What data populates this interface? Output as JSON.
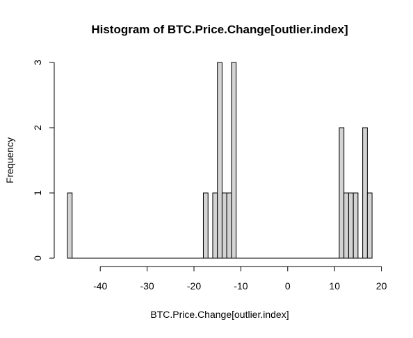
{
  "chart_data": {
    "type": "bar",
    "subtype": "histogram",
    "title": "Histogram of BTC.Price.Change[outlier.index]",
    "xlabel": "BTC.Price.Change[outlier.index]",
    "ylabel": "Frequency",
    "xlim": [
      -47,
      18
    ],
    "ylim": [
      0,
      3
    ],
    "bin_width": 1,
    "bins": [
      {
        "start": -47,
        "end": -46,
        "count": 1
      },
      {
        "start": -18,
        "end": -17,
        "count": 1
      },
      {
        "start": -16,
        "end": -15,
        "count": 1
      },
      {
        "start": -15,
        "end": -14,
        "count": 3
      },
      {
        "start": -14,
        "end": -13,
        "count": 1
      },
      {
        "start": -13,
        "end": -12,
        "count": 1
      },
      {
        "start": -12,
        "end": -11,
        "count": 3
      },
      {
        "start": 11,
        "end": 12,
        "count": 2
      },
      {
        "start": 12,
        "end": 13,
        "count": 1
      },
      {
        "start": 13,
        "end": 14,
        "count": 1
      },
      {
        "start": 14,
        "end": 15,
        "count": 1
      },
      {
        "start": 16,
        "end": 17,
        "count": 2
      },
      {
        "start": 17,
        "end": 18,
        "count": 1
      }
    ],
    "x_ticks": [
      -40,
      -30,
      -20,
      -10,
      0,
      10,
      20
    ],
    "x_tick_labels": [
      "-40",
      "-30",
      "-20",
      "-10",
      "0",
      "10",
      "20"
    ],
    "y_ticks": [
      0,
      1,
      2,
      3
    ],
    "y_tick_labels": [
      "0",
      "1",
      "2",
      "3"
    ],
    "x_axis_range": [
      -40,
      20
    ],
    "bar_fill": "#d3d3d3",
    "bar_stroke": "#000000",
    "grid": false,
    "legend": "none"
  }
}
